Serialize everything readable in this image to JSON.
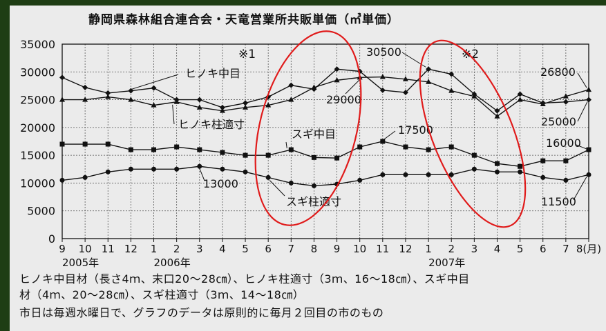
{
  "title": "静岡県森林組合連合会・天竜営業所共販単価（㎥単価）",
  "chart_data": {
    "type": "line",
    "title": "静岡県森林組合連合会・天竜営業所共販単価（㎥単価）",
    "categories": [
      "9",
      "10",
      "11",
      "12",
      "1",
      "2",
      "3",
      "4",
      "5",
      "6",
      "7",
      "8",
      "9",
      "10",
      "11",
      "12",
      "1",
      "2",
      "3",
      "4",
      "5",
      "6",
      "7",
      "8(月)"
    ],
    "year_labels": [
      {
        "label": "2005年",
        "index": 0
      },
      {
        "label": "2006年",
        "index": 4
      },
      {
        "label": "2007年",
        "index": 16
      }
    ],
    "ylim": [
      0,
      35000
    ],
    "yticks": [
      0,
      5000,
      10000,
      15000,
      20000,
      25000,
      30000,
      35000
    ],
    "grid": true,
    "series": [
      {
        "name": "ヒノキ中目",
        "marker": "diamond",
        "values": [
          29000,
          27200,
          26200,
          26600,
          27100,
          25000,
          25000,
          23600,
          24400,
          25500,
          27600,
          26900,
          30500,
          30100,
          26700,
          26300,
          30500,
          29600,
          26000,
          23000,
          26000,
          24400,
          24600,
          25000
        ]
      },
      {
        "name": "ヒノキ柱適寸",
        "marker": "triangle",
        "values": [
          25000,
          25000,
          25500,
          25000,
          24000,
          24600,
          23600,
          23000,
          23600,
          24000,
          25000,
          27200,
          28500,
          29000,
          29100,
          28700,
          28200,
          26600,
          25600,
          22000,
          25000,
          24200,
          25600,
          26800
        ]
      },
      {
        "name": "スギ中目",
        "marker": "square",
        "values": [
          17000,
          17000,
          17000,
          16000,
          16000,
          16500,
          16000,
          15500,
          15000,
          15000,
          16000,
          14600,
          14500,
          16500,
          17500,
          16500,
          16000,
          16500,
          15000,
          13500,
          13000,
          14000,
          14000,
          16000
        ]
      },
      {
        "name": "スギ柱適寸",
        "marker": "circle",
        "values": [
          10500,
          11000,
          12000,
          12500,
          12500,
          12500,
          13000,
          12500,
          12000,
          11000,
          10000,
          9500,
          9800,
          10500,
          11500,
          11500,
          11500,
          11500,
          12500,
          12000,
          12000,
          11000,
          10500,
          11500
        ]
      }
    ],
    "annotations": [
      "※1",
      "※2",
      "30500",
      "29000",
      "17500",
      "13000",
      "26800",
      "25000",
      "16000",
      "11500"
    ]
  },
  "notes": {
    "line1": "ヒノキ中目材（長さ4ｍ、末口20〜28㎝）、ヒノキ柱適寸（3ｍ、16〜18㎝）、スギ中目",
    "line2": "材（4ｍ、20〜28㎝）、スギ柱適寸（3ｍ、14〜18㎝）",
    "line3": "市日は毎週水曜日で、グラフのデータは原則的に毎月２回目の市のもの"
  },
  "colors": {
    "line": "#111111",
    "circle": "#e01b1b",
    "background": "#ebebeb",
    "frame": "#1e3d14"
  }
}
